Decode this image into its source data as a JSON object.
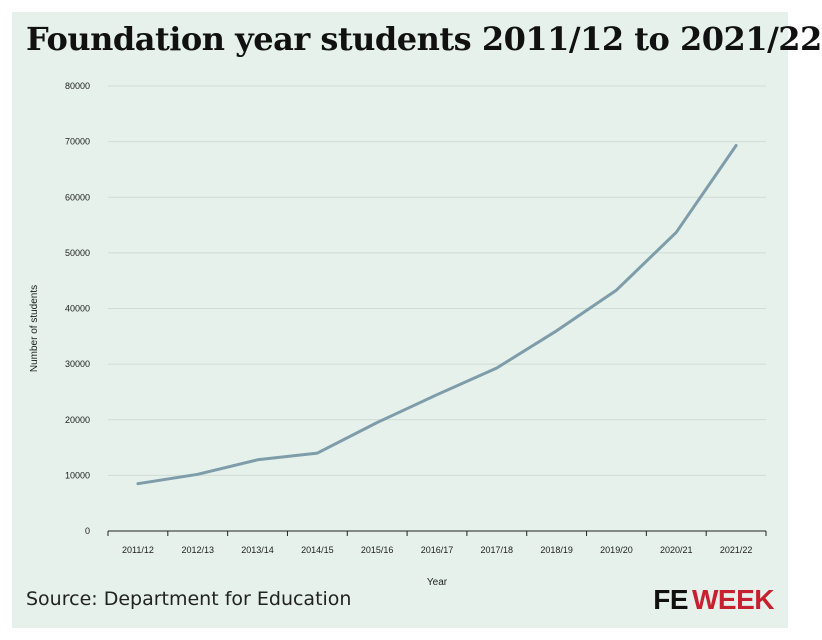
{
  "chart_data": {
    "type": "line",
    "title": "Foundation year students 2011/12 to 2021/22",
    "xlabel": "Year",
    "ylabel": "Number of students",
    "categories": [
      "2011/12",
      "2012/13",
      "2013/14",
      "2014/15",
      "2015/16",
      "2016/17",
      "2017/18",
      "2018/19",
      "2019/20",
      "2020/21",
      "2021/22"
    ],
    "series": [
      {
        "values": [
          8500,
          10200,
          12800,
          14000,
          19500,
          24500,
          29300,
          36000,
          43300,
          53700,
          69300
        ]
      }
    ],
    "ylim": [
      0,
      80000
    ],
    "yticks": [
      "0",
      "10000",
      "20000",
      "30000",
      "40000",
      "50000",
      "60000",
      "70000",
      "80000"
    ],
    "grid": true,
    "legend": "none",
    "line_color": "#7f9caa",
    "grid_color": "#cfdcd4"
  },
  "footer": {
    "source": "Source: Department for Education",
    "logo_fe": "FE",
    "logo_week": "WEEK"
  },
  "colors": {
    "background": "#e5f1ea",
    "logo_red": "#c8202e"
  }
}
